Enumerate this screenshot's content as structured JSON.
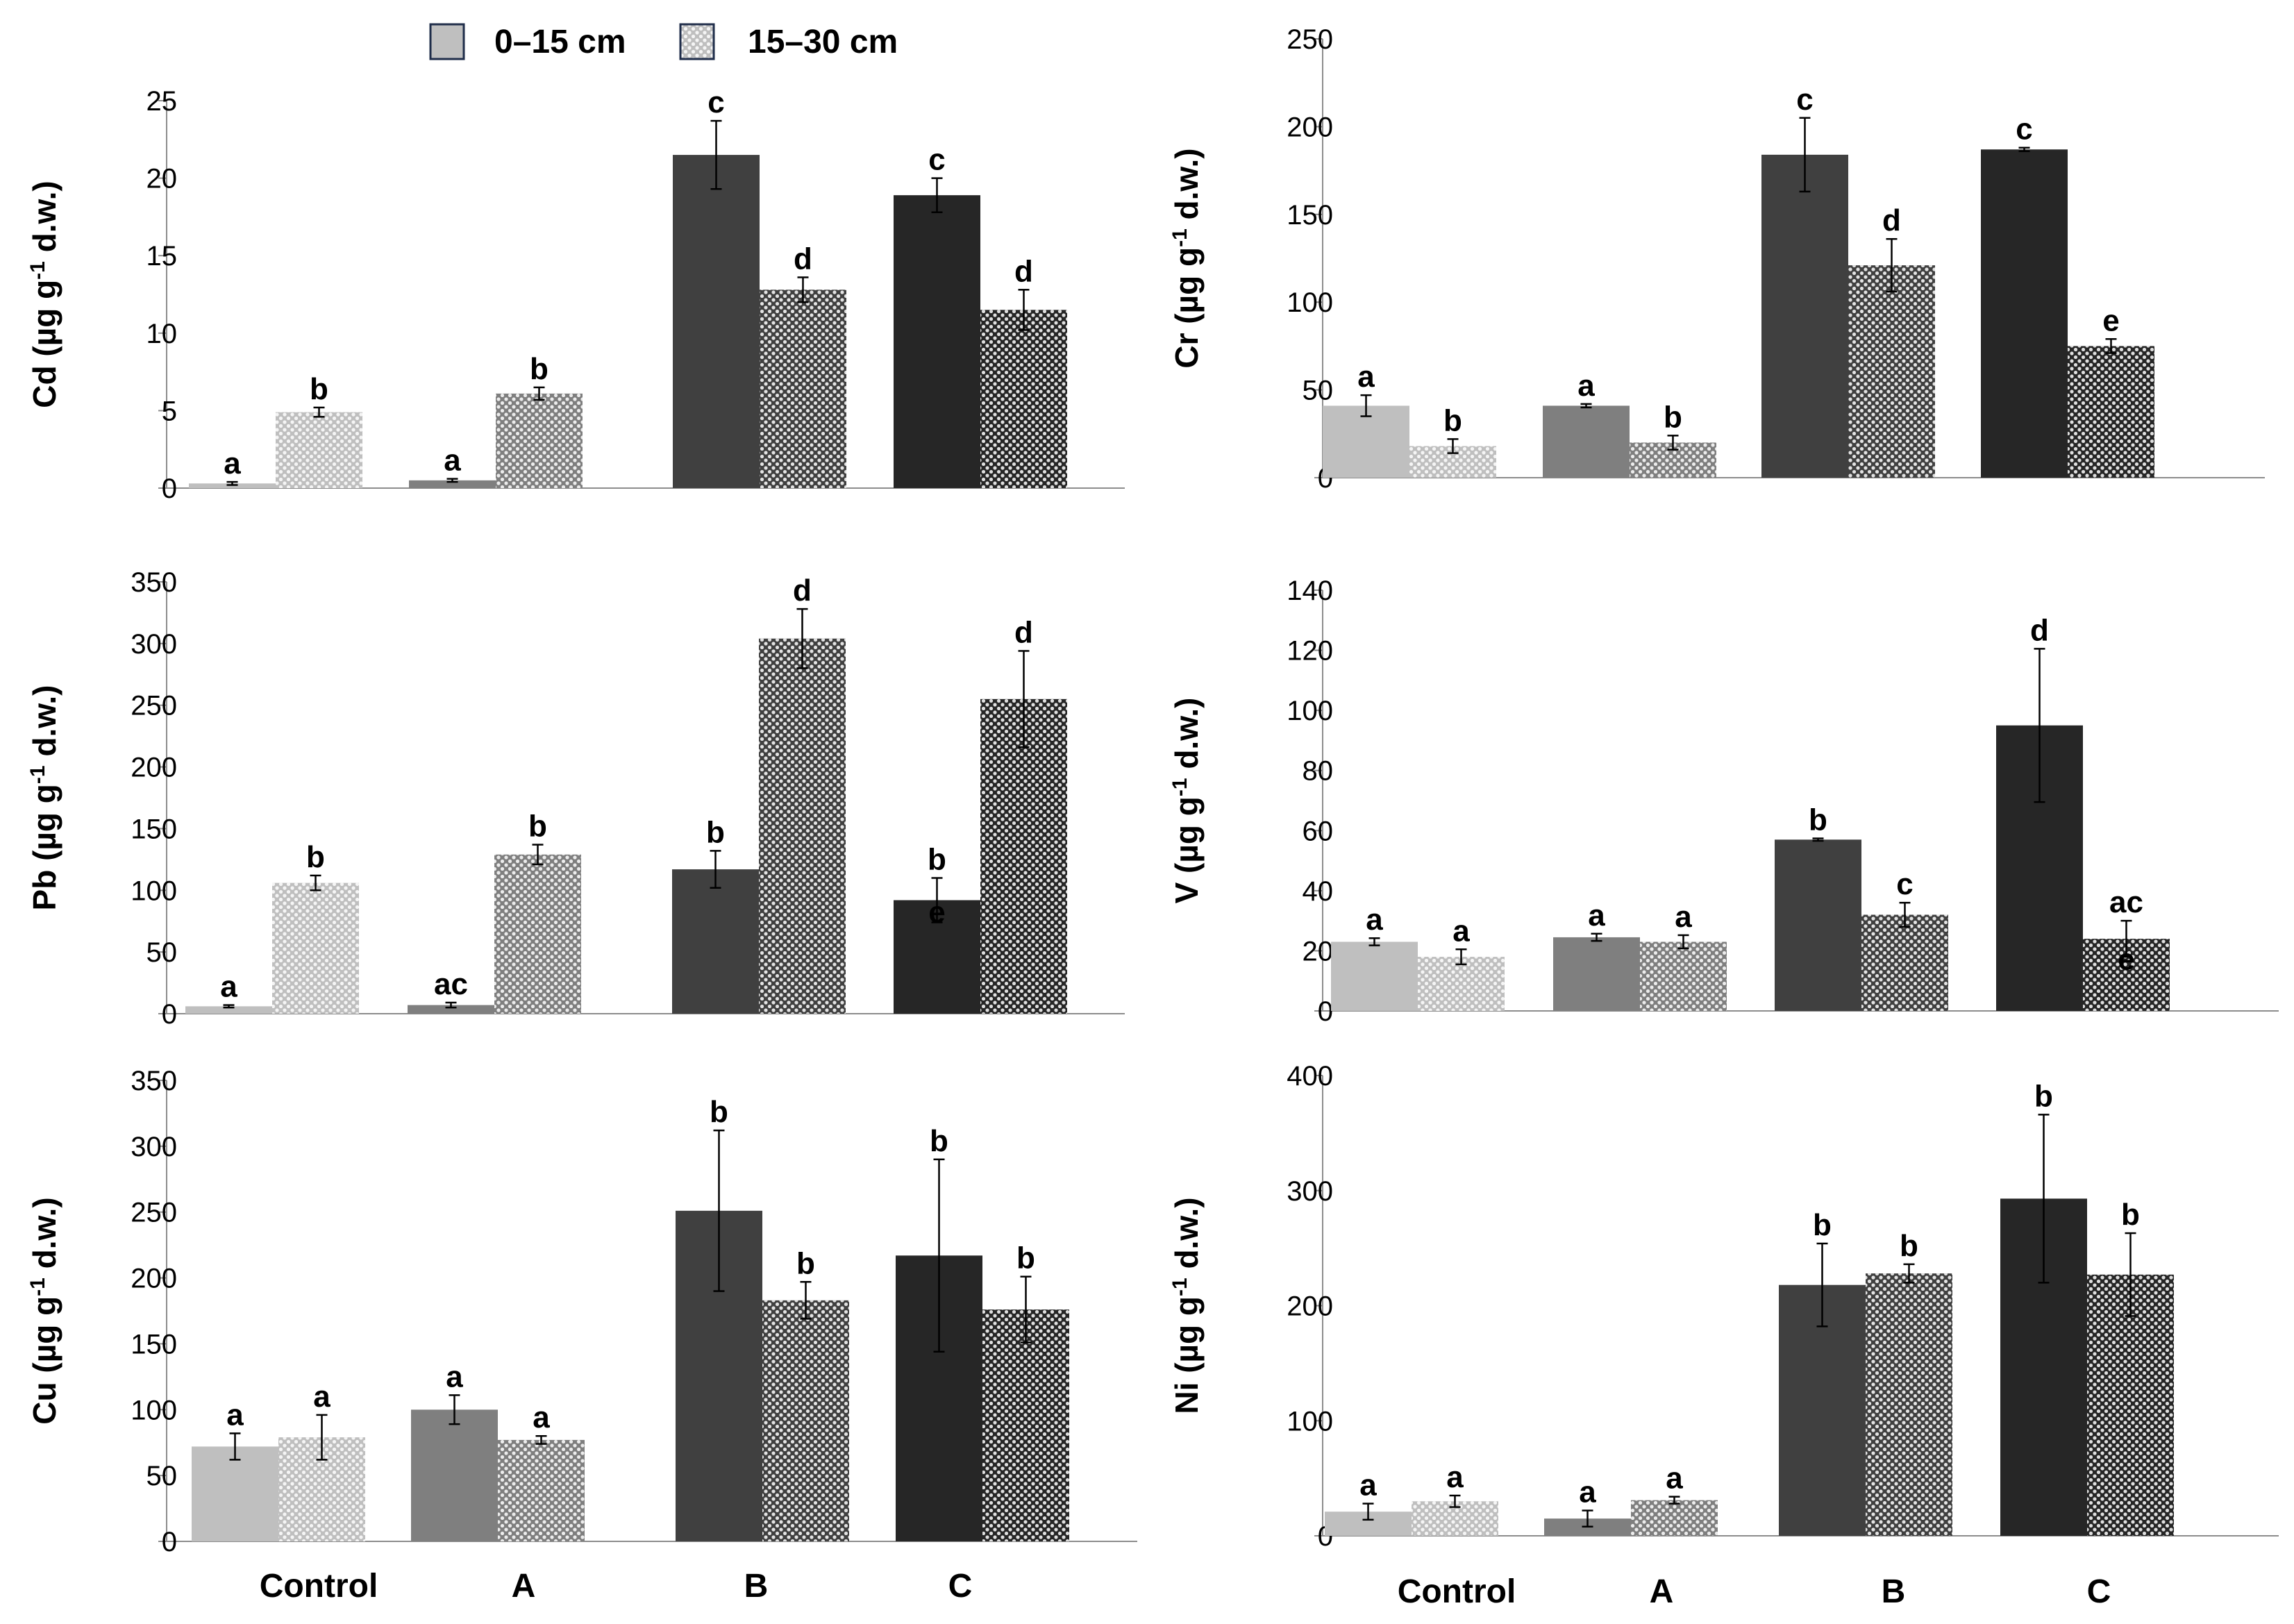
{
  "legend": {
    "series": [
      {
        "name": "0–15 cm",
        "pattern": "solid"
      },
      {
        "name": "15–30 cm",
        "pattern": "dotted"
      }
    ]
  },
  "group_colors": {
    "Control": "#bfbfbf",
    "A": "#7f7f7f",
    "B": "#404040",
    "C": "#262626"
  },
  "chart_data": [
    {
      "id": "cd",
      "type": "bar",
      "metal": "Cd",
      "ylabel": "Cd (µg g-1 d.w.)",
      "ylabel_main": "Cd (µg g",
      "ylabel_sup": "-1",
      "ylabel_tail": " d.w.)",
      "ylim": [
        0,
        25
      ],
      "yticks": [
        0,
        5,
        10,
        15,
        20,
        25
      ],
      "categories": [
        "Control",
        "A",
        "B",
        "C"
      ],
      "series": [
        {
          "name": "0–15 cm",
          "values": [
            0.3,
            0.5,
            21.5,
            18.9
          ],
          "errors": [
            0.1,
            0.1,
            2.2,
            1.1
          ],
          "letters": [
            "a",
            "a",
            "c",
            "c"
          ]
        },
        {
          "name": "15–30 cm",
          "values": [
            4.9,
            6.1,
            12.8,
            11.5
          ],
          "errors": [
            0.3,
            0.4,
            0.8,
            1.3
          ],
          "letters": [
            "b",
            "b",
            "d",
            "d"
          ]
        }
      ]
    },
    {
      "id": "cr",
      "type": "bar",
      "metal": "Cr",
      "ylabel": "Cr (µg g-1 d.w.)",
      "ylabel_main": "Cr (µg g",
      "ylabel_sup": "-1",
      "ylabel_tail": " d.w.)",
      "ylim": [
        0,
        250
      ],
      "yticks": [
        0,
        50,
        100,
        150,
        200,
        250
      ],
      "categories": [
        "Control",
        "A",
        "B",
        "C"
      ],
      "series": [
        {
          "name": "0–15 cm",
          "values": [
            41,
            41,
            184,
            187
          ],
          "errors": [
            6,
            1,
            21,
            1
          ],
          "letters": [
            "a",
            "a",
            "c",
            "c"
          ]
        },
        {
          "name": "15–30 cm",
          "values": [
            18,
            20,
            121,
            75
          ],
          "errors": [
            4,
            4,
            15,
            4
          ],
          "letters": [
            "b",
            "b",
            "d",
            "e"
          ]
        }
      ]
    },
    {
      "id": "pb",
      "type": "bar",
      "metal": "Pb",
      "ylabel": "Pb (µg g-1 d.w.)",
      "ylabel_main": "Pb (µg g",
      "ylabel_sup": "-1",
      "ylabel_tail": " d.w.)",
      "ylim": [
        0,
        350
      ],
      "yticks": [
        0,
        50,
        100,
        150,
        200,
        250,
        300,
        350
      ],
      "categories": [
        "Control",
        "A",
        "B",
        "C"
      ],
      "series": [
        {
          "name": "0–15 cm",
          "values": [
            6,
            7,
            117,
            92
          ],
          "errors": [
            1,
            2,
            15,
            18
          ],
          "letters": [
            "a",
            "ac",
            "b",
            "b"
          ]
        },
        {
          "name": "15–30 cm",
          "values": [
            106,
            129,
            304,
            255
          ],
          "errors": [
            6,
            8,
            24,
            39
          ],
          "letters": [
            "b",
            "b",
            "d",
            "d"
          ]
        }
      ],
      "annotations": [
        {
          "text": "e",
          "category": "C",
          "series": "0–15 cm",
          "value": 82
        }
      ]
    },
    {
      "id": "v",
      "type": "bar",
      "metal": "V",
      "ylabel": "V (µg g-1 d.w.)",
      "ylabel_main": "V (µg g",
      "ylabel_sup": "-1",
      "ylabel_tail": " d.w.)",
      "ylim": [
        0,
        140
      ],
      "yticks": [
        0,
        20,
        40,
        60,
        80,
        100,
        120,
        140
      ],
      "categories": [
        "Control",
        "A",
        "B",
        "C"
      ],
      "series": [
        {
          "name": "0–15 cm",
          "values": [
            23,
            24.5,
            57,
            95
          ],
          "errors": [
            1.2,
            1.2,
            0.4,
            25.5
          ],
          "letters": [
            "a",
            "a",
            "b",
            "d"
          ]
        },
        {
          "name": "15–30 cm",
          "values": [
            18,
            23,
            32,
            24
          ],
          "errors": [
            2.5,
            2.2,
            4,
            6
          ],
          "letters": [
            "a",
            "a",
            "c",
            "ac"
          ]
        }
      ],
      "annotations": [
        {
          "text": "e",
          "category": "C",
          "series": "15–30 cm",
          "value": 17
        }
      ]
    },
    {
      "id": "cu",
      "type": "bar",
      "metal": "Cu",
      "ylabel": "Cu (µg g-1 d.w.)",
      "ylabel_main": "Cu (µg g",
      "ylabel_sup": "-1",
      "ylabel_tail": " d.w.)",
      "ylim": [
        0,
        350
      ],
      "yticks": [
        0,
        50,
        100,
        150,
        200,
        250,
        300,
        350
      ],
      "categories": [
        "Control",
        "A",
        "B",
        "C"
      ],
      "series": [
        {
          "name": "0–15 cm",
          "values": [
            72,
            100,
            251,
            217
          ],
          "errors": [
            10,
            11,
            61,
            73
          ],
          "letters": [
            "a",
            "a",
            "b",
            "b"
          ]
        },
        {
          "name": "15–30 cm",
          "values": [
            79,
            77,
            183,
            176
          ],
          "errors": [
            17,
            3,
            14,
            25
          ],
          "letters": [
            "a",
            "a",
            "b",
            "b"
          ]
        }
      ]
    },
    {
      "id": "ni",
      "type": "bar",
      "metal": "Ni",
      "ylabel": "Ni (µg g-1 d.w.)",
      "ylabel_main": "Ni (µg  g",
      "ylabel_sup": "-1",
      "ylabel_tail": " d.w.)",
      "ylim": [
        0,
        400
      ],
      "yticks": [
        0,
        100,
        200,
        300,
        400
      ],
      "categories": [
        "Control",
        "A",
        "B",
        "C"
      ],
      "series": [
        {
          "name": "0–15 cm",
          "values": [
            21,
            15,
            218,
            293
          ],
          "errors": [
            7,
            7,
            36,
            73
          ],
          "letters": [
            "a",
            "a",
            "b",
            "b"
          ]
        },
        {
          "name": "15–30 cm",
          "values": [
            30,
            31,
            228,
            227
          ],
          "errors": [
            5,
            3,
            8,
            36
          ],
          "letters": [
            "a",
            "a",
            "b",
            "b"
          ]
        }
      ]
    }
  ]
}
